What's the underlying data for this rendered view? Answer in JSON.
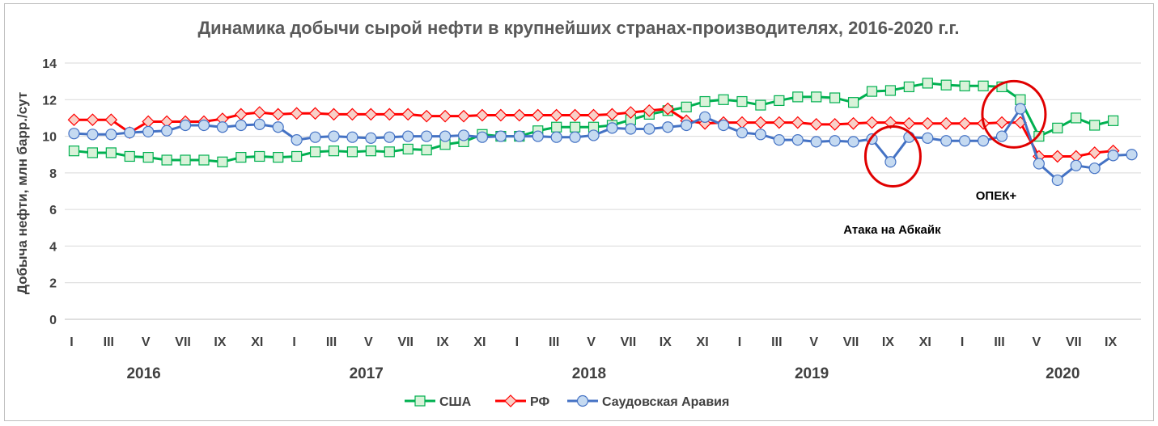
{
  "chart_data": {
    "type": "line",
    "title": "Динамика добычи сырой нефти в крупнейших странах-производителях, 2016-2020 г.г.",
    "ylabel": "Добыча нефти, млн барр./сут",
    "xlabel": "",
    "ylim": [
      0,
      14
    ],
    "yticks": [
      0,
      2,
      4,
      6,
      8,
      10,
      12,
      14
    ],
    "grid": "horizontal",
    "legend_position": "bottom",
    "month_tick_labels": [
      "I",
      "III",
      "V",
      "VII",
      "IX",
      "XI"
    ],
    "years": [
      "2016",
      "2017",
      "2018",
      "2019",
      "2020"
    ],
    "x": [
      "2016-01",
      "2016-02",
      "2016-03",
      "2016-04",
      "2016-05",
      "2016-06",
      "2016-07",
      "2016-08",
      "2016-09",
      "2016-10",
      "2016-11",
      "2016-12",
      "2017-01",
      "2017-02",
      "2017-03",
      "2017-04",
      "2017-05",
      "2017-06",
      "2017-07",
      "2017-08",
      "2017-09",
      "2017-10",
      "2017-11",
      "2017-12",
      "2018-01",
      "2018-02",
      "2018-03",
      "2018-04",
      "2018-05",
      "2018-06",
      "2018-07",
      "2018-08",
      "2018-09",
      "2018-10",
      "2018-11",
      "2018-12",
      "2019-01",
      "2019-02",
      "2019-03",
      "2019-04",
      "2019-05",
      "2019-06",
      "2019-07",
      "2019-08",
      "2019-09",
      "2019-10",
      "2019-11",
      "2019-12",
      "2020-01",
      "2020-02",
      "2020-03",
      "2020-04",
      "2020-05",
      "2020-06",
      "2020-07",
      "2020-08",
      "2020-09",
      "2020-10"
    ],
    "series": [
      {
        "name": "США",
        "color": "#00b050",
        "marker": "square",
        "marker_fill": "#d9f2d9",
        "values": [
          9.2,
          9.1,
          9.1,
          8.9,
          8.85,
          8.7,
          8.7,
          8.7,
          8.6,
          8.85,
          8.9,
          8.85,
          8.9,
          9.15,
          9.2,
          9.15,
          9.2,
          9.15,
          9.3,
          9.25,
          9.55,
          9.7,
          10.1,
          10.0,
          10.0,
          10.3,
          10.5,
          10.5,
          10.5,
          10.6,
          10.9,
          11.2,
          11.4,
          11.6,
          11.9,
          12.0,
          11.9,
          11.7,
          11.95,
          12.15,
          12.15,
          12.1,
          11.85,
          12.45,
          12.5,
          12.7,
          12.9,
          12.8,
          12.75,
          12.75,
          12.7,
          12.0,
          10.0,
          10.45,
          11.0,
          10.6,
          10.85,
          null
        ]
      },
      {
        "name": "РФ",
        "color": "#ff0000",
        "marker": "diamond",
        "marker_fill": "#f8d0c8",
        "values": [
          10.9,
          10.9,
          10.9,
          10.2,
          10.8,
          10.8,
          10.8,
          10.8,
          10.95,
          11.2,
          11.3,
          11.2,
          11.25,
          11.25,
          11.2,
          11.2,
          11.2,
          11.2,
          11.2,
          11.1,
          11.1,
          11.1,
          11.15,
          11.15,
          11.15,
          11.15,
          11.15,
          11.15,
          11.15,
          11.2,
          11.3,
          11.4,
          11.5,
          10.85,
          10.7,
          10.75,
          10.75,
          10.75,
          10.75,
          10.75,
          10.65,
          10.65,
          10.7,
          10.75,
          10.75,
          10.7,
          10.7,
          10.7,
          10.7,
          10.7,
          10.75,
          10.75,
          8.9,
          8.9,
          8.9,
          9.1,
          9.2,
          null
        ]
      },
      {
        "name": "Саудовская Аравия",
        "color": "#4472c4",
        "marker": "circle",
        "marker_fill": "#c5daf1",
        "values": [
          10.15,
          10.1,
          10.1,
          10.2,
          10.25,
          10.3,
          10.6,
          10.6,
          10.5,
          10.6,
          10.65,
          10.5,
          9.8,
          9.95,
          10.0,
          9.95,
          9.9,
          9.95,
          10.0,
          10.0,
          10.0,
          10.05,
          9.95,
          10.0,
          10.0,
          10.0,
          9.95,
          9.95,
          10.05,
          10.45,
          10.4,
          10.4,
          10.5,
          10.6,
          11.05,
          10.6,
          10.2,
          10.1,
          9.8,
          9.8,
          9.7,
          9.75,
          9.7,
          9.85,
          8.6,
          9.95,
          9.9,
          9.75,
          9.75,
          9.75,
          10.0,
          11.5,
          8.5,
          7.6,
          8.4,
          8.25,
          8.95,
          9.0
        ]
      }
    ],
    "annotations": [
      {
        "text": "Атака на Абкайк",
        "month": "2019-09",
        "circle_center_value": 8.9
      },
      {
        "text": "ОПЕК+",
        "month": "2020-04",
        "circle_center_value": 11.2
      }
    ]
  }
}
